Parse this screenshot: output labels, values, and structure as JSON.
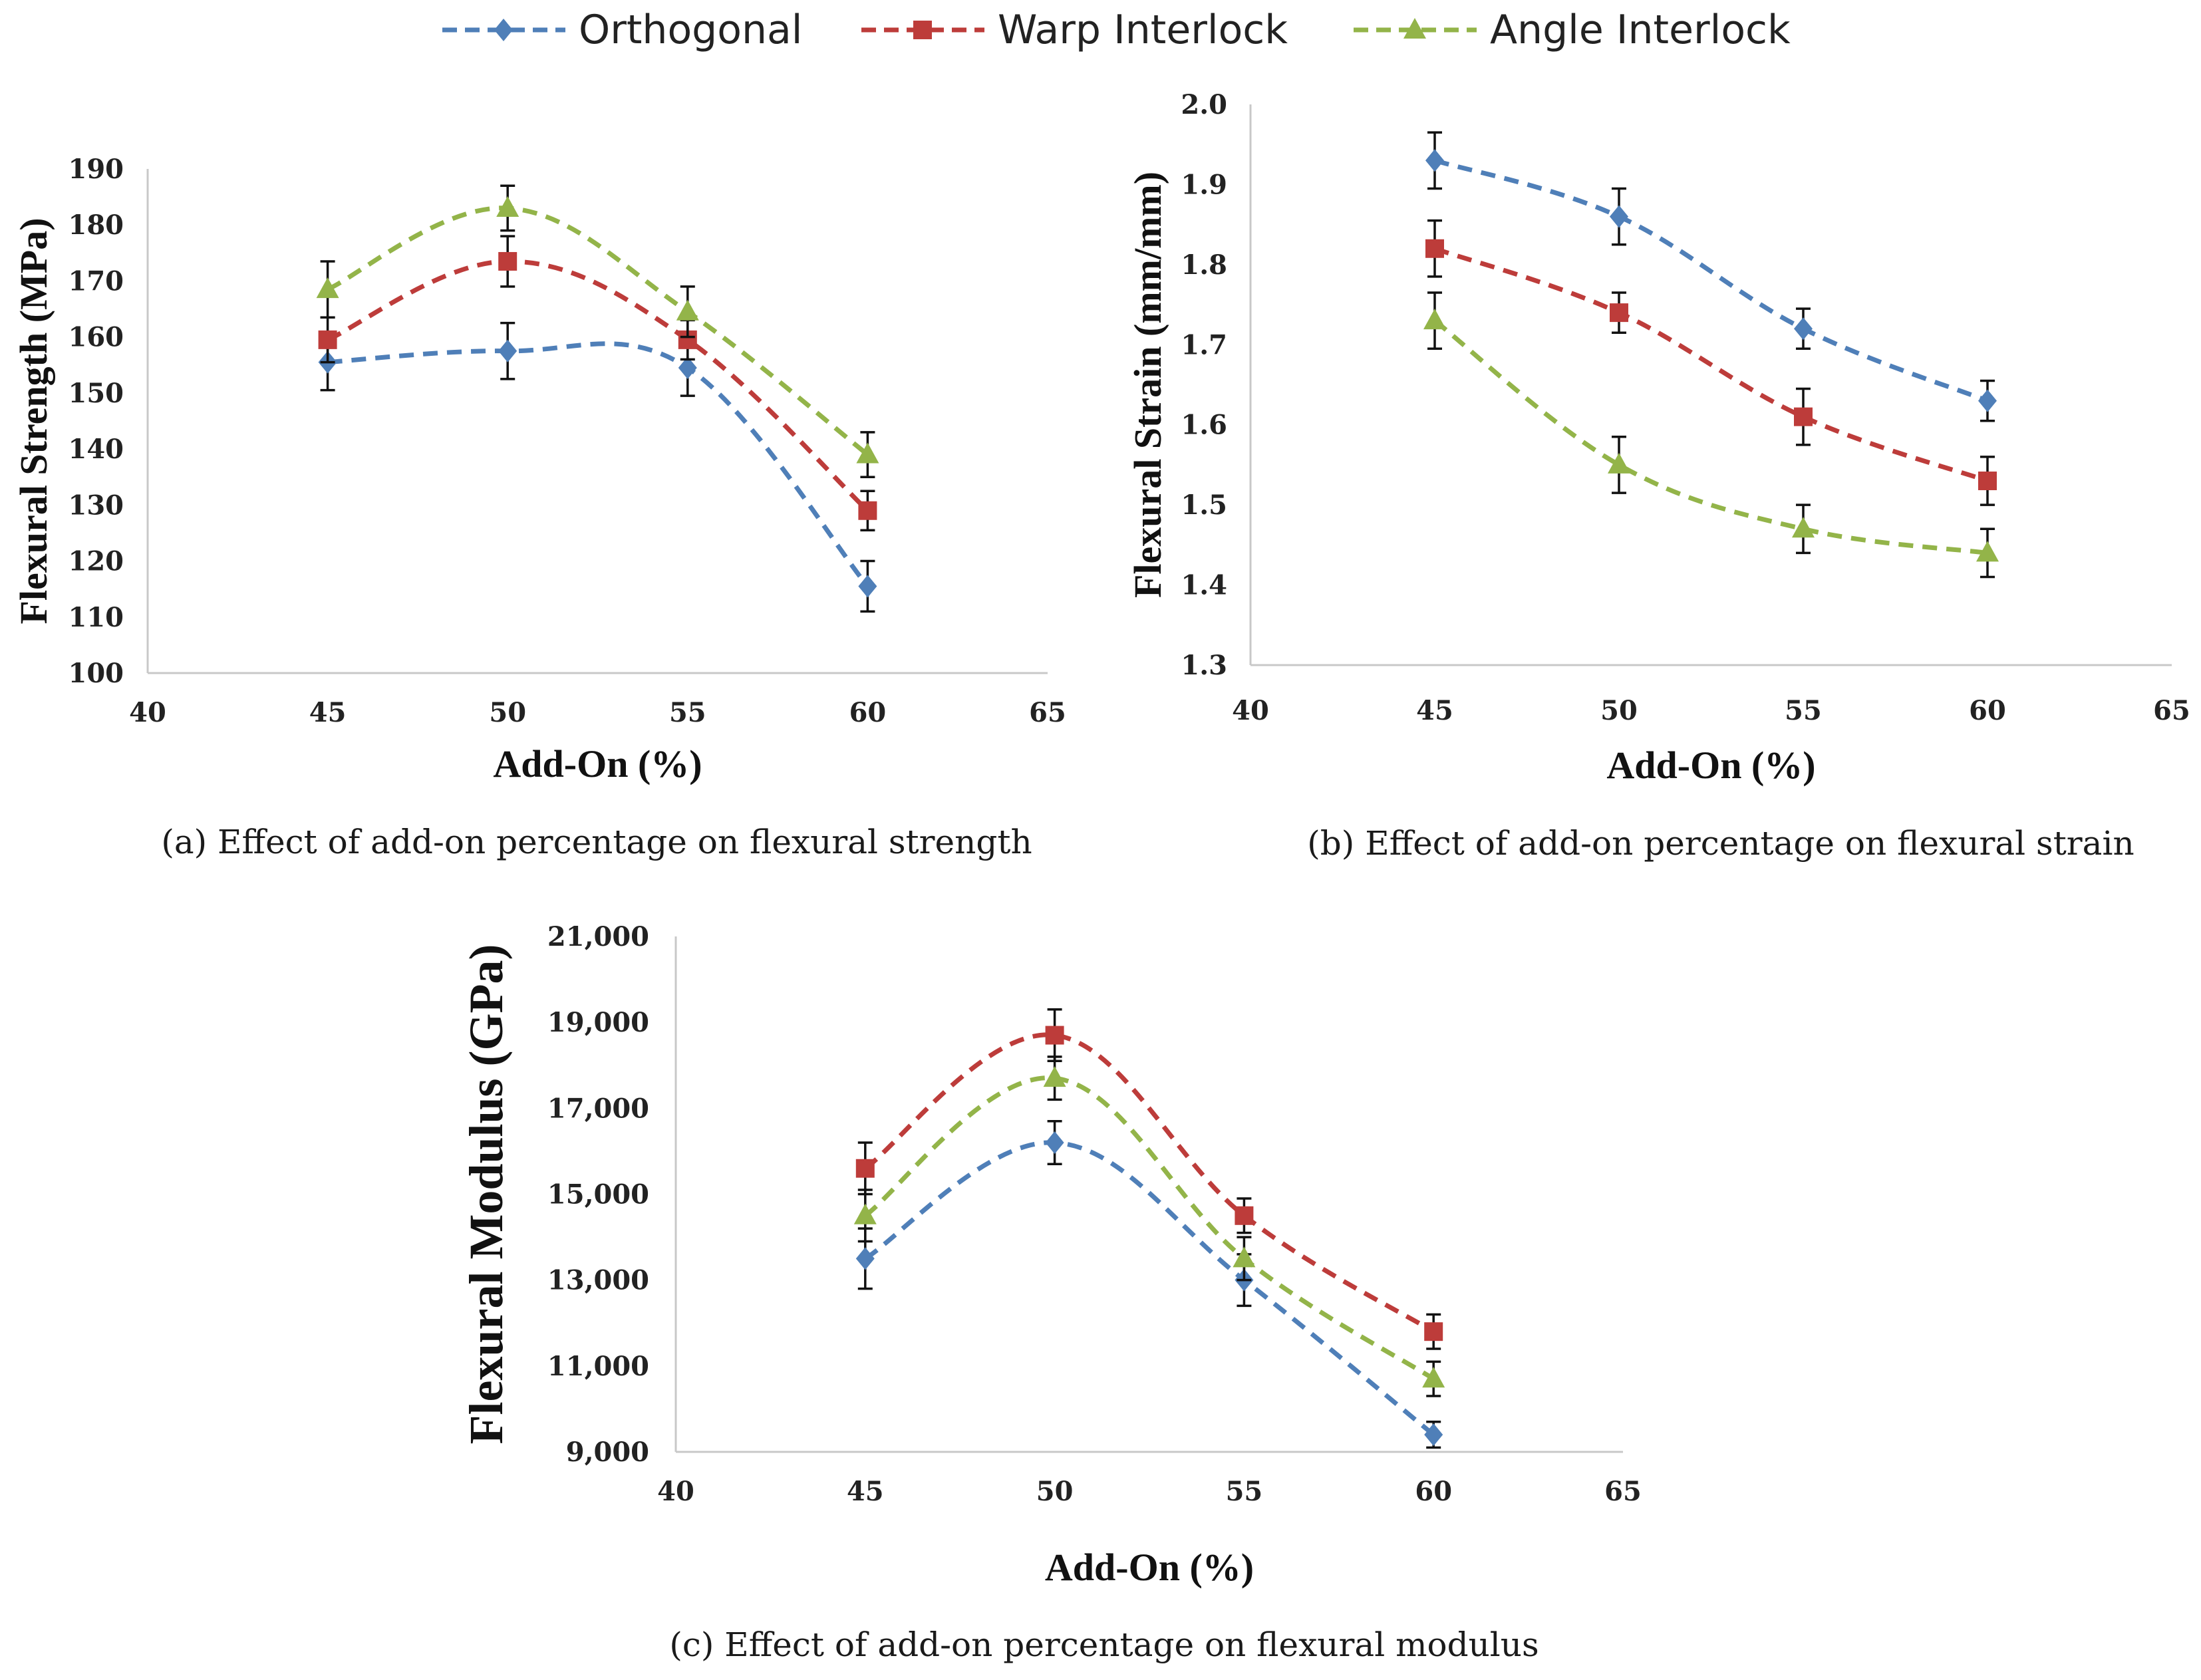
{
  "legend": [
    {
      "name": "Orthogonal",
      "color": "#4f7fb8",
      "marker": "diamond"
    },
    {
      "name": "Warp Interlock",
      "color": "#bd3c3a",
      "marker": "square"
    },
    {
      "name": "Angle Interlock",
      "color": "#93b449",
      "marker": "triangle"
    }
  ],
  "chart_data": [
    {
      "id": "a",
      "type": "line",
      "caption": "(a) Effect of add-on percentage  on flexural strength",
      "xlabel": "Add-On (%)",
      "ylabel": "Flexural Strength (MPa)",
      "xlim": [
        40,
        65
      ],
      "ylim": [
        100,
        190
      ],
      "xticks": [
        "40",
        "45",
        "50",
        "55",
        "60",
        "65"
      ],
      "yticks": [
        "100",
        "110",
        "120",
        "130",
        "140",
        "150",
        "160",
        "170",
        "180",
        "190"
      ],
      "x": [
        45,
        50,
        55,
        60
      ],
      "series": [
        {
          "name": "Orthogonal",
          "values": [
            155.5,
            157.5,
            154.5,
            115.5
          ],
          "errors": [
            5,
            5,
            5,
            4.5
          ]
        },
        {
          "name": "Warp Interlock",
          "values": [
            159.5,
            173.5,
            159.5,
            129
          ],
          "errors": [
            4,
            4.5,
            3.5,
            3.5
          ]
        },
        {
          "name": "Angle Interlock",
          "values": [
            168.5,
            183,
            164.5,
            139
          ],
          "errors": [
            5,
            4,
            4.5,
            4
          ]
        }
      ]
    },
    {
      "id": "b",
      "type": "line",
      "caption": "(b) Effect of add-on percentage  on flexural strain",
      "xlabel": "Add-On (%)",
      "ylabel": "Flexural Strain (mm/mm)",
      "xlim": [
        40,
        65
      ],
      "ylim": [
        1.3,
        2.0
      ],
      "xticks": [
        "40",
        "45",
        "50",
        "55",
        "60",
        "65"
      ],
      "yticks": [
        "1.3",
        "1.4",
        "1.5",
        "1.6",
        "1.7",
        "1.8",
        "1.9",
        "2.0"
      ],
      "x": [
        45,
        50,
        55,
        60
      ],
      "series": [
        {
          "name": "Orthogonal",
          "values": [
            1.93,
            1.86,
            1.72,
            1.63
          ],
          "errors": [
            0.035,
            0.035,
            0.025,
            0.025
          ]
        },
        {
          "name": "Warp Interlock",
          "values": [
            1.82,
            1.74,
            1.61,
            1.53
          ],
          "errors": [
            0.035,
            0.025,
            0.035,
            0.03
          ]
        },
        {
          "name": "Angle Interlock",
          "values": [
            1.73,
            1.55,
            1.47,
            1.44
          ],
          "errors": [
            0.035,
            0.035,
            0.03,
            0.03
          ]
        }
      ]
    },
    {
      "id": "c",
      "type": "line",
      "caption": "(c) Effect of add-on percentage on flexural modulus",
      "xlabel": "Add-On (%)",
      "ylabel": "Flexural Modulus (GPa)",
      "xlim": [
        40,
        65
      ],
      "ylim": [
        9000,
        21000
      ],
      "xticks": [
        "40",
        "45",
        "50",
        "55",
        "60",
        "65"
      ],
      "yticks": [
        "9,000",
        "11,000",
        "13,000",
        "15,000",
        "17,000",
        "19,000",
        "21,000"
      ],
      "x": [
        45,
        50,
        55,
        60
      ],
      "series": [
        {
          "name": "Orthogonal",
          "values": [
            13500,
            16200,
            13000,
            9400
          ],
          "errors": [
            700,
            500,
            600,
            300
          ]
        },
        {
          "name": "Warp Interlock",
          "values": [
            15600,
            18700,
            14500,
            11800
          ],
          "errors": [
            600,
            600,
            400,
            400
          ]
        },
        {
          "name": "Angle Interlock",
          "values": [
            14500,
            17700,
            13500,
            10700
          ],
          "errors": [
            600,
            500,
            500,
            400
          ]
        }
      ]
    }
  ]
}
